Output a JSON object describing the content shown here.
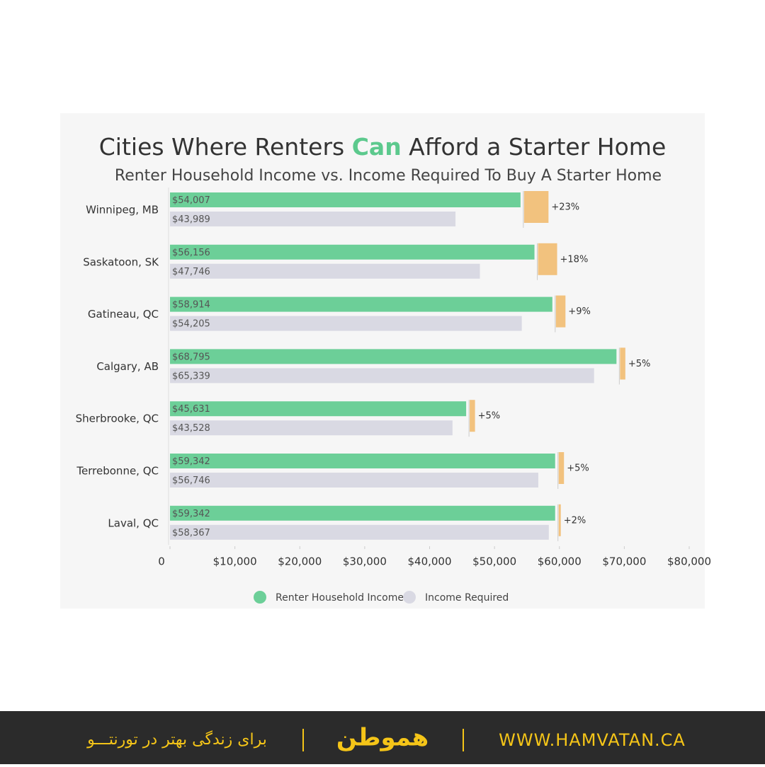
{
  "chart_data": {
    "type": "bar",
    "orientation": "horizontal",
    "title": [
      "Cities Where Renters ",
      "Can",
      " Afford a Starter Home"
    ],
    "title_highlight_color": "#5cc98d",
    "subtitle": "Renter Household Income vs. Income Required To Buy A Starter Home",
    "categories": [
      "Winnipeg, MB",
      "Saskatoon, SK",
      "Gatineau, QC",
      "Calgary, AB",
      "Sherbrooke, QC",
      "Terrebonne, QC",
      "Laval, QC"
    ],
    "series": [
      {
        "name": "Renter Household Income",
        "color": "#6ccf98",
        "values": [
          54007,
          56156,
          58914,
          68795,
          45631,
          59342,
          59342
        ],
        "value_labels": [
          "$54,007",
          "$56,156",
          "$58,914",
          "$68,795",
          "$45,631",
          "$59,342",
          "$59,342"
        ]
      },
      {
        "name": "Income Required",
        "color": "#d9d9e3",
        "values": [
          43989,
          47746,
          54205,
          65339,
          43528,
          56746,
          58367
        ],
        "value_labels": [
          "$43,989",
          "$47,746",
          "$54,205",
          "$65,339",
          "$43,528",
          "$56,746",
          "$58,367"
        ]
      }
    ],
    "difference": {
      "color": "#f2c27e",
      "values": [
        23,
        18,
        9,
        5,
        5,
        5,
        2
      ],
      "value_labels": [
        "+23%",
        "+18%",
        "+9%",
        "+5%",
        "+5%",
        "+5%",
        "+2%"
      ]
    },
    "xlim": [
      0,
      80000
    ],
    "xticks": [
      0,
      {
        "value": 10000,
        "label": "$10,000"
      },
      {
        "value": 20000,
        "label": "$20,000"
      },
      {
        "value": 30000,
        "label": "$30,000"
      },
      {
        "value": 40000,
        "label": "$40,000"
      },
      {
        "value": 50000,
        "label": "$50,000"
      },
      {
        "value": 60000,
        "label": "$60,000"
      },
      {
        "value": 70000,
        "label": "$70,000"
      },
      {
        "value": 80000,
        "label": "$80,000"
      }
    ],
    "legend": "bottom"
  },
  "footer": {
    "slogan": "برای زندگی بهتر در تورنتـــو",
    "logo": "هموطن",
    "website": "WWW.HAMVATAN.CA"
  }
}
